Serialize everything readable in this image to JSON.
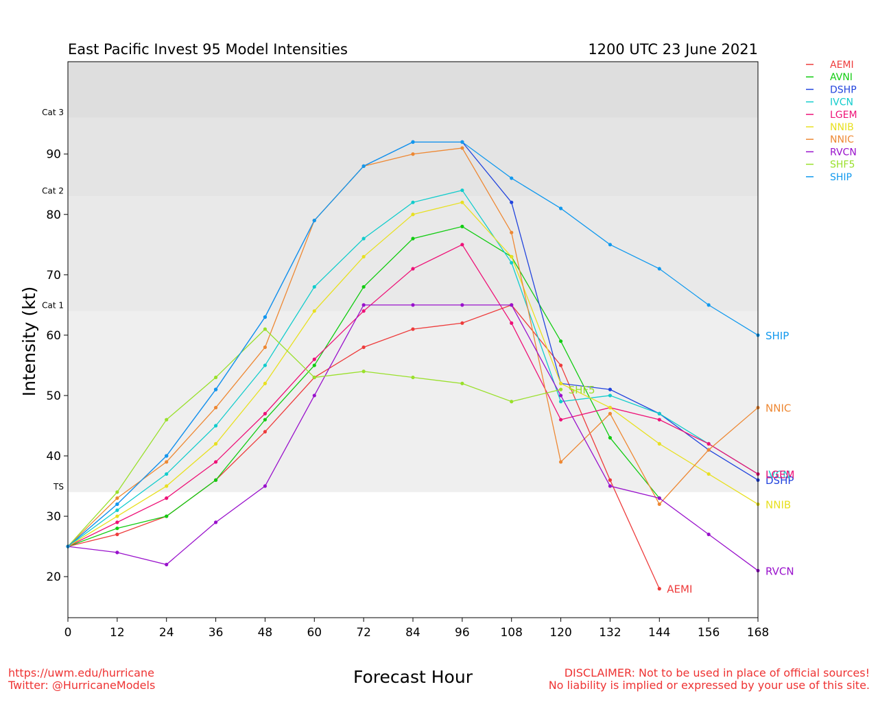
{
  "footer": {
    "url": "https://uwm.edu/hurricane",
    "twitter": "Twitter: @HurricaneModels",
    "disclaimer1": "DISCLAIMER: Not to be used in place of official sources!",
    "disclaimer2": "No liability is implied or expressed by your use of this site."
  },
  "chart_data": {
    "type": "line",
    "title": "East Pacific Invest 95 Model Intensities",
    "subtitle": "1200 UTC 23 June 2021",
    "xlabel": "Forecast Hour",
    "ylabel": "Intensity (kt)",
    "xlim": [
      0,
      168
    ],
    "ylim": [
      13.2,
      105.3
    ],
    "x_ticks": [
      0,
      12,
      24,
      36,
      48,
      60,
      72,
      84,
      96,
      108,
      120,
      132,
      144,
      156,
      168
    ],
    "y_ticks": [
      20,
      30,
      40,
      50,
      60,
      70,
      80,
      90
    ],
    "grid": false,
    "legend_position": "outside-right-top",
    "category_bands": [
      {
        "label": "TS",
        "from": 34,
        "to": 64,
        "color": "#efefef"
      },
      {
        "label": "Cat 1",
        "from": 64,
        "to": 83,
        "color": "#e9e9e9"
      },
      {
        "label": "Cat 2",
        "from": 83,
        "to": 96,
        "color": "#e4e4e4"
      },
      {
        "label": "Cat 3",
        "from": 96,
        "to": 113,
        "color": "#dedede"
      }
    ],
    "series": [
      {
        "name": "AEMI",
        "color": "#ee3b3b",
        "x": [
          0,
          12,
          24,
          36,
          48,
          60,
          72,
          84,
          96,
          108,
          120,
          132,
          144
        ],
        "y": [
          25,
          27,
          30,
          36,
          44,
          53,
          58,
          61,
          62,
          65,
          55,
          36,
          18
        ],
        "end_label": "AEMI"
      },
      {
        "name": "AVNI",
        "color": "#11cc11",
        "x": [
          0,
          12,
          24,
          36,
          48,
          60,
          72,
          84,
          96,
          108,
          120,
          132,
          144
        ],
        "y": [
          25,
          28,
          30,
          36,
          46,
          55,
          68,
          76,
          78,
          73,
          59,
          43,
          33
        ],
        "end_label": ""
      },
      {
        "name": "DSHP",
        "color": "#2244dd",
        "x": [
          0,
          12,
          24,
          36,
          48,
          60,
          72,
          84,
          96,
          108,
          120,
          132,
          144,
          156,
          168
        ],
        "y": [
          25,
          32,
          40,
          51,
          63,
          79,
          88,
          92,
          92,
          82,
          52,
          51,
          47,
          41,
          36
        ],
        "end_label": "DSHP"
      },
      {
        "name": "IVCN",
        "color": "#11cccc",
        "x": [
          0,
          12,
          24,
          36,
          48,
          60,
          72,
          84,
          96,
          108,
          120,
          132,
          144,
          156,
          168
        ],
        "y": [
          25,
          31,
          37,
          45,
          55,
          68,
          76,
          82,
          84,
          72,
          49,
          50,
          47,
          42,
          37
        ],
        "end_label": "IVCN"
      },
      {
        "name": "LGEM",
        "color": "#ee1177",
        "x": [
          0,
          12,
          24,
          36,
          48,
          60,
          72,
          84,
          96,
          108,
          120,
          132,
          144,
          156,
          168
        ],
        "y": [
          25,
          29,
          33,
          39,
          47,
          56,
          64,
          71,
          75,
          62,
          46,
          48,
          46,
          42,
          37
        ],
        "end_label": "LGEM"
      },
      {
        "name": "NNIB",
        "color": "#e8e020",
        "x": [
          0,
          12,
          24,
          36,
          48,
          60,
          72,
          84,
          96,
          108,
          120,
          132,
          144,
          156,
          168
        ],
        "y": [
          25,
          30,
          35,
          42,
          52,
          64,
          73,
          80,
          82,
          73,
          52,
          48,
          42,
          37,
          32
        ],
        "end_label": "NNIB"
      },
      {
        "name": "NNIC",
        "color": "#ee8833",
        "x": [
          0,
          12,
          24,
          36,
          48,
          60,
          72,
          84,
          96,
          108,
          120,
          132,
          144,
          156,
          168
        ],
        "y": [
          25,
          33,
          39,
          48,
          58,
          79,
          88,
          90,
          91,
          77,
          39,
          47,
          32,
          41,
          48
        ],
        "end_label": "NNIC"
      },
      {
        "name": "RVCN",
        "color": "#9911cc",
        "x": [
          0,
          12,
          24,
          36,
          48,
          60,
          72,
          84,
          96,
          108,
          120,
          132,
          144,
          156,
          168
        ],
        "y": [
          25,
          24,
          22,
          29,
          35,
          50,
          65,
          65,
          65,
          65,
          50,
          35,
          33,
          27,
          21
        ],
        "end_label": "RVCN"
      },
      {
        "name": "SHF5",
        "color": "#99e02a",
        "x": [
          0,
          12,
          24,
          36,
          48,
          60,
          72,
          84,
          96,
          108,
          120
        ],
        "y": [
          25,
          34,
          46,
          53,
          61,
          53,
          54,
          53,
          52,
          49,
          51
        ],
        "end_label": "SHF5"
      },
      {
        "name": "SHIP",
        "color": "#1199ee",
        "x": [
          0,
          12,
          24,
          36,
          48,
          60,
          72,
          84,
          96,
          108,
          120,
          132,
          144,
          156,
          168
        ],
        "y": [
          25,
          32,
          40,
          51,
          63,
          79,
          88,
          92,
          92,
          86,
          81,
          75,
          71,
          65,
          60
        ],
        "end_label": "SHIP"
      }
    ]
  }
}
